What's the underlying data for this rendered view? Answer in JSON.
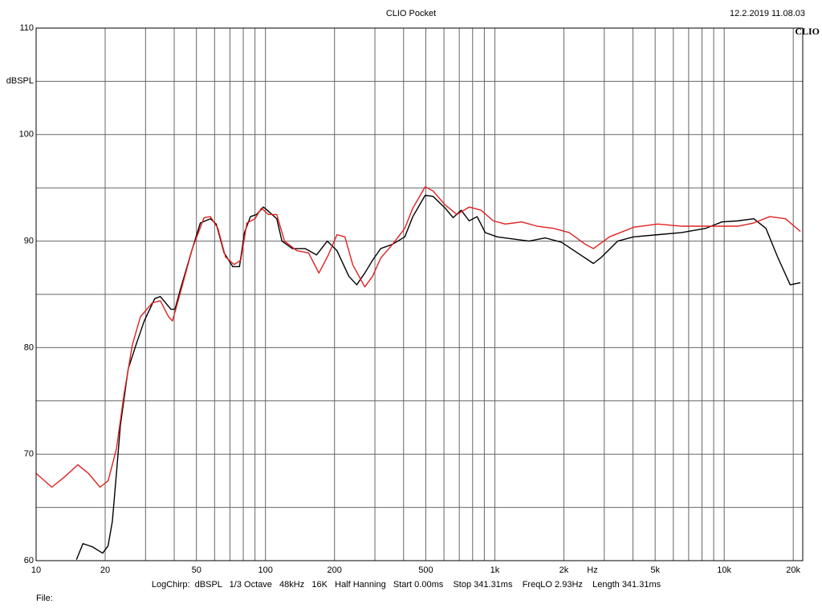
{
  "chart_data": {
    "type": "line",
    "title": "CLIO Pocket",
    "timestamp": "12.2.2019 11.08.03",
    "logo": "CLIO",
    "ylabel": "dBSPL",
    "xlabel": "Hz",
    "settings": "LogChirp:  dBSPL   1/3 Octave   48kHz   16K   Half Hanning   Start 0.00ms    Stop 341.31ms    FreqLO 2.93Hz    Length 341.31ms",
    "file_label": "File:",
    "xscale": "log",
    "grid": true,
    "xlim": [
      10,
      22000
    ],
    "ylim": [
      60,
      110
    ],
    "xticks": [
      10,
      20,
      50,
      100,
      200,
      500,
      {
        "value": 1000,
        "label": "1k"
      },
      {
        "value": 2000,
        "label": "2k"
      },
      {
        "value": 5000,
        "label": "5k"
      },
      {
        "value": 10000,
        "label": "10k"
      },
      {
        "value": 20000,
        "label": "20k"
      }
    ],
    "xminorticks": [
      30,
      40,
      60,
      70,
      80,
      90,
      300,
      400,
      600,
      700,
      800,
      900,
      3000,
      4000,
      6000,
      7000,
      8000,
      9000
    ],
    "yticks": [
      60,
      70,
      80,
      90,
      100,
      110
    ],
    "yminorticks": [
      65,
      75,
      85,
      95,
      105
    ],
    "series": [
      {
        "color": "#000000",
        "x": [
          15,
          16,
          17.6,
          19.5,
          20.6,
          21.5,
          22.4,
          23.3,
          25.2,
          27.3,
          29.6,
          32.9,
          34.8,
          38.7,
          40.3,
          42.6,
          48,
          52,
          57.5,
          61,
          66,
          72,
          77,
          81,
          86,
          91.5,
          98,
          103,
          112,
          118,
          131,
          149,
          167,
          186,
          205,
          231,
          250,
          271,
          293,
          318,
          358,
          405,
          439,
          497,
          538,
          607,
          658,
          713,
          773,
          837,
          908,
          1024,
          1200,
          1410,
          1660,
          1950,
          2290,
          2690,
          2920,
          3430,
          4030,
          5130,
          6530,
          8320,
          9770,
          11460,
          13460,
          15200,
          17100,
          19400,
          21500
        ],
        "values": [
          60.1,
          61.6,
          61.3,
          60.7,
          61.4,
          63.7,
          68.2,
          72.7,
          78.0,
          80.3,
          82.5,
          84.6,
          84.8,
          83.6,
          83.6,
          85.5,
          89.3,
          91.7,
          92.1,
          91.6,
          88.9,
          87.6,
          87.6,
          90.8,
          92.3,
          92.5,
          93.2,
          92.8,
          92.1,
          90.0,
          89.3,
          89.3,
          88.7,
          90.0,
          89.1,
          86.7,
          85.9,
          87.0,
          88.2,
          89.3,
          89.7,
          90.4,
          92.3,
          94.3,
          94.2,
          93.1,
          92.2,
          92.9,
          91.9,
          92.3,
          90.8,
          90.4,
          90.2,
          90.0,
          90.3,
          89.9,
          88.9,
          87.9,
          88.5,
          90.0,
          90.4,
          90.6,
          90.8,
          91.2,
          91.8,
          91.9,
          92.1,
          91.2,
          88.5,
          85.9,
          86.1
        ]
      },
      {
        "color": "#e02020",
        "x": [
          10,
          11.7,
          13.2,
          15.2,
          16.9,
          19,
          20.6,
          22.4,
          24.2,
          26.3,
          28.5,
          32.1,
          34.8,
          37.8,
          39.3,
          42.6,
          48,
          54,
          57.5,
          62,
          67,
          73,
          78,
          83,
          90,
          96,
          103,
          112,
          121,
          137,
          154,
          171,
          188,
          205,
          222,
          240,
          271,
          293,
          318,
          358,
          405,
          439,
          497,
          538,
          607,
          684,
          773,
          870,
          985,
          1110,
          1310,
          1530,
          1800,
          2110,
          2480,
          2690,
          3160,
          4030,
          5130,
          6530,
          8320,
          9770,
          11460,
          13460,
          15800,
          18500,
          21500
        ],
        "values": [
          68.2,
          66.9,
          67.8,
          69.0,
          68.2,
          66.9,
          67.5,
          70.5,
          75.7,
          80.3,
          82.9,
          84.2,
          84.4,
          82.9,
          82.5,
          85.2,
          89.3,
          92.2,
          92.3,
          91.2,
          88.5,
          87.8,
          88.2,
          91.7,
          92.1,
          93.1,
          92.5,
          92.5,
          90.0,
          89.1,
          88.9,
          87.0,
          88.7,
          90.6,
          90.4,
          87.8,
          85.7,
          86.7,
          88.4,
          89.7,
          91.2,
          93.1,
          95.1,
          94.7,
          93.4,
          92.5,
          93.2,
          92.9,
          91.9,
          91.6,
          91.8,
          91.4,
          91.2,
          90.8,
          89.7,
          89.3,
          90.4,
          91.3,
          91.6,
          91.4,
          91.4,
          91.4,
          91.4,
          91.7,
          92.3,
          92.1,
          90.9
        ]
      }
    ]
  }
}
